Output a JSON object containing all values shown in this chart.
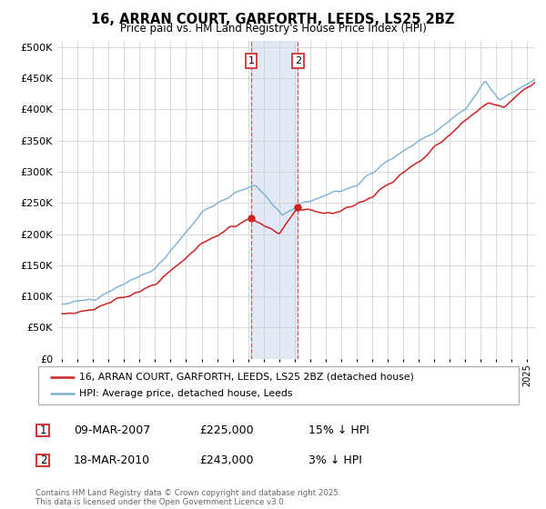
{
  "title": "16, ARRAN COURT, GARFORTH, LEEDS, LS25 2BZ",
  "subtitle": "Price paid vs. HM Land Registry's House Price Index (HPI)",
  "background_color": "#ffffff",
  "plot_bg_color": "#ffffff",
  "grid_color": "#cccccc",
  "hpi_color": "#7ab0d4",
  "price_color": "#cc2222",
  "sale1_x": 2007.19,
  "sale2_x": 2010.21,
  "sale1_price": 225000,
  "sale2_price": 243000,
  "legend1": "16, ARRAN COURT, GARFORTH, LEEDS, LS25 2BZ (detached house)",
  "legend2": "HPI: Average price, detached house, Leeds",
  "footer": "Contains HM Land Registry data © Crown copyright and database right 2025.\nThis data is licensed under the Open Government Licence v3.0.",
  "ylim": [
    0,
    510000
  ],
  "xlim_start": 1994.7,
  "xlim_end": 2025.5,
  "sale1_date": "09-MAR-2007",
  "sale2_date": "18-MAR-2010",
  "sale1_pricef": "£225,000",
  "sale2_pricef": "£243,000",
  "sale1_hpi": "15% ↓ HPI",
  "sale2_hpi": "3% ↓ HPI"
}
